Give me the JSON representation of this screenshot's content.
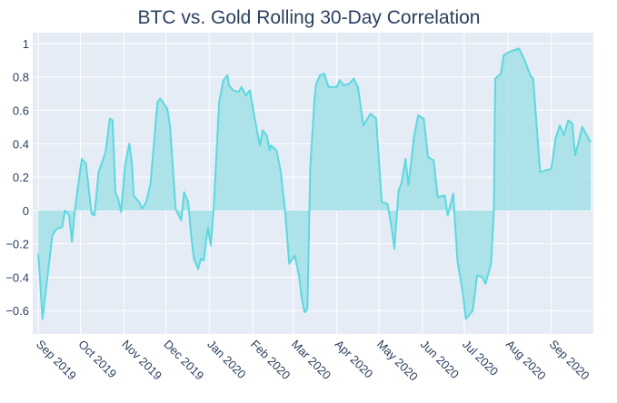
{
  "chart_data": {
    "type": "area",
    "title": "BTC vs. Gold Rolling 30-Day Correlation",
    "xlabel": "",
    "ylabel": "",
    "xlim": [
      "2019-08-28",
      "2020-10-01"
    ],
    "ylim": [
      -0.74,
      1.065
    ],
    "grid": true,
    "legend": "none",
    "fill": "tozeroy",
    "colors": {
      "line": "#5dd8e0",
      "fill": "#a6e1e8",
      "plot_bg": "#e5ecf6",
      "grid": "#ffffff",
      "text": "#2a3f5f"
    },
    "y_ticks": [
      {
        "value": 1,
        "label": "1"
      },
      {
        "value": 0.8,
        "label": "0.8"
      },
      {
        "value": 0.6,
        "label": "0.6"
      },
      {
        "value": 0.4,
        "label": "0.4"
      },
      {
        "value": 0.2,
        "label": "0.2"
      },
      {
        "value": 0,
        "label": "0"
      },
      {
        "value": -0.2,
        "label": "−0.2"
      },
      {
        "value": -0.4,
        "label": "−0.4"
      },
      {
        "value": -0.6,
        "label": "−0.6"
      }
    ],
    "x_ticks": [
      {
        "date": "2019-09-01",
        "label": "Sep 2019"
      },
      {
        "date": "2019-10-01",
        "label": "Oct 2019"
      },
      {
        "date": "2019-11-01",
        "label": "Nov 2019"
      },
      {
        "date": "2019-12-01",
        "label": "Dec 2019"
      },
      {
        "date": "2020-01-01",
        "label": "Jan 2020"
      },
      {
        "date": "2020-02-01",
        "label": "Feb 2020"
      },
      {
        "date": "2020-03-01",
        "label": "Mar 2020"
      },
      {
        "date": "2020-04-01",
        "label": "Apr 2020"
      },
      {
        "date": "2020-05-01",
        "label": "May 2020"
      },
      {
        "date": "2020-06-01",
        "label": "Jun 2020"
      },
      {
        "date": "2020-07-01",
        "label": "Jul 2020"
      },
      {
        "date": "2020-08-01",
        "label": "Aug 2020"
      },
      {
        "date": "2020-09-01",
        "label": "Sep 2020"
      }
    ],
    "x": [
      "2019-09-01",
      "2019-09-04",
      "2019-09-11",
      "2019-09-14",
      "2019-09-18",
      "2019-09-20",
      "2019-09-23",
      "2019-09-25",
      "2019-09-27",
      "2019-10-02",
      "2019-10-05",
      "2019-10-09",
      "2019-10-11",
      "2019-10-14",
      "2019-10-19",
      "2019-10-22",
      "2019-10-24",
      "2019-10-26",
      "2019-10-28",
      "2019-10-30",
      "2019-11-02",
      "2019-11-05",
      "2019-11-07",
      "2019-11-08",
      "2019-11-12",
      "2019-11-14",
      "2019-11-17",
      "2019-11-20",
      "2019-11-25",
      "2019-11-27",
      "2019-12-02",
      "2019-12-04",
      "2019-12-08",
      "2019-12-12",
      "2019-12-14",
      "2019-12-17",
      "2019-12-19",
      "2019-12-21",
      "2019-12-24",
      "2019-12-26",
      "2019-12-28",
      "2019-12-31",
      "2020-01-02",
      "2020-01-04",
      "2020-01-08",
      "2020-01-11",
      "2020-01-14",
      "2020-01-15",
      "2020-01-18",
      "2020-01-22",
      "2020-01-24",
      "2020-01-27",
      "2020-01-30",
      "2020-02-02",
      "2020-02-06",
      "2020-02-08",
      "2020-02-11",
      "2020-02-13",
      "2020-02-14",
      "2020-02-18",
      "2020-02-21",
      "2020-02-24",
      "2020-02-27",
      "2020-03-02",
      "2020-03-05",
      "2020-03-07",
      "2020-03-09",
      "2020-03-11",
      "2020-03-13",
      "2020-03-16",
      "2020-03-17",
      "2020-03-20",
      "2020-03-23",
      "2020-03-26",
      "2020-04-01",
      "2020-04-03",
      "2020-04-06",
      "2020-04-10",
      "2020-04-13",
      "2020-04-16",
      "2020-04-20",
      "2020-04-25",
      "2020-04-29",
      "2020-05-03",
      "2020-05-07",
      "2020-05-10",
      "2020-05-12",
      "2020-05-15",
      "2020-05-17",
      "2020-05-20",
      "2020-05-22",
      "2020-05-26",
      "2020-05-29",
      "2020-06-02",
      "2020-06-05",
      "2020-06-09",
      "2020-06-12",
      "2020-06-17",
      "2020-06-19",
      "2020-06-23",
      "2020-06-26",
      "2020-06-30",
      "2020-07-02",
      "2020-07-07",
      "2020-07-10",
      "2020-07-14",
      "2020-07-16",
      "2020-07-20",
      "2020-07-22",
      "2020-07-23",
      "2020-07-27",
      "2020-07-29",
      "2020-08-02",
      "2020-08-09",
      "2020-08-13",
      "2020-08-17",
      "2020-08-19",
      "2020-08-24",
      "2020-08-28",
      "2020-09-01",
      "2020-09-04",
      "2020-09-07",
      "2020-09-10",
      "2020-09-13",
      "2020-09-16",
      "2020-09-18",
      "2020-09-21",
      "2020-09-23",
      "2020-09-29"
    ],
    "y": [
      -0.26,
      -0.65,
      -0.15,
      -0.11,
      -0.1,
      0.0,
      -0.03,
      -0.19,
      0.0,
      0.31,
      0.28,
      -0.02,
      -0.03,
      0.23,
      0.35,
      0.55,
      0.54,
      0.11,
      0.07,
      -0.01,
      0.28,
      0.4,
      0.26,
      0.09,
      0.05,
      0.01,
      0.05,
      0.16,
      0.65,
      0.67,
      0.61,
      0.5,
      0.01,
      -0.06,
      0.11,
      0.05,
      -0.15,
      -0.29,
      -0.35,
      -0.29,
      -0.3,
      -0.1,
      -0.21,
      0.0,
      0.65,
      0.78,
      0.81,
      0.75,
      0.72,
      0.71,
      0.74,
      0.69,
      0.72,
      0.57,
      0.39,
      0.48,
      0.45,
      0.36,
      0.39,
      0.36,
      0.23,
      0.0,
      -0.32,
      -0.27,
      -0.39,
      -0.53,
      -0.61,
      -0.59,
      0.25,
      0.66,
      0.75,
      0.81,
      0.82,
      0.74,
      0.74,
      0.78,
      0.75,
      0.76,
      0.79,
      0.74,
      0.51,
      0.58,
      0.55,
      0.05,
      0.04,
      -0.1,
      -0.23,
      0.12,
      0.16,
      0.31,
      0.15,
      0.44,
      0.57,
      0.55,
      0.32,
      0.3,
      0.08,
      0.09,
      -0.03,
      0.1,
      -0.3,
      -0.5,
      -0.65,
      -0.6,
      -0.39,
      -0.4,
      -0.44,
      -0.32,
      0.0,
      0.79,
      0.82,
      0.93,
      0.95,
      0.97,
      0.9,
      0.81,
      0.79,
      0.23,
      0.24,
      0.25,
      0.43,
      0.51,
      0.45,
      0.54,
      0.52,
      0.33,
      0.43,
      0.5,
      0.41
    ]
  }
}
